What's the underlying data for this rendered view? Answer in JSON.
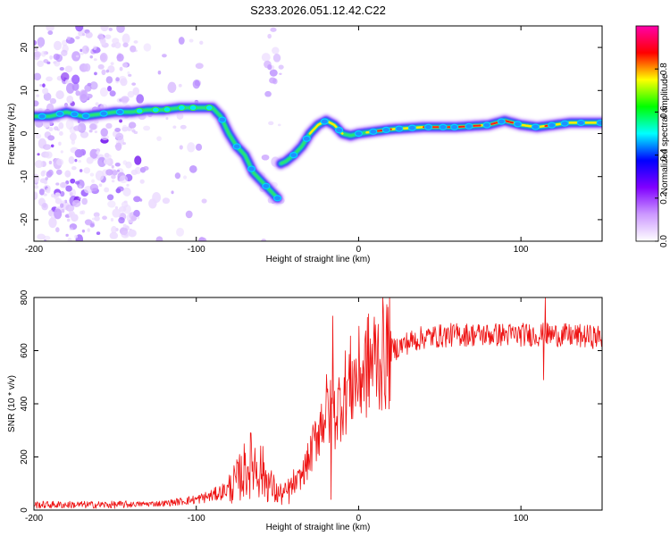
{
  "title": "S233.2026.051.12.42.C22",
  "chart_data": [
    {
      "type": "heatmap",
      "name": "spectrogram",
      "xlabel": "Height of straight line (km)",
      "ylabel": "Frequency (Hz)",
      "xlim": [
        -200,
        150
      ],
      "ylim": [
        -25,
        25
      ],
      "xticks": [
        -200,
        -100,
        0,
        100
      ],
      "yticks": [
        20,
        10,
        0,
        -10,
        -20
      ],
      "colorbar": {
        "label": "Normalized spectral amplitude",
        "range": [
          0,
          1
        ],
        "ticks": [
          0.0,
          0.2,
          0.4,
          0.6,
          0.8
        ],
        "colors": [
          "#ffffff",
          "#cc99ff",
          "#8000ff",
          "#0000ff",
          "#00ffff",
          "#00ff00",
          "#ffff00",
          "#ff0000",
          "#ff00aa"
        ]
      },
      "ridge": [
        [
          -200,
          4
        ],
        [
          -190,
          4
        ],
        [
          -180,
          5
        ],
        [
          -170,
          4
        ],
        [
          -160,
          4.5
        ],
        [
          -150,
          5
        ],
        [
          -140,
          5
        ],
        [
          -130,
          5.5
        ],
        [
          -120,
          5.5
        ],
        [
          -110,
          6
        ],
        [
          -100,
          6
        ],
        [
          -90,
          6
        ],
        [
          -85,
          4
        ],
        [
          -80,
          0
        ],
        [
          -75,
          -3
        ],
        [
          -70,
          -5
        ],
        [
          -65,
          -9
        ],
        [
          -60,
          -11
        ],
        [
          -55,
          -13
        ],
        [
          -50,
          -15
        ],
        [
          -48,
          -7
        ],
        [
          -45,
          -6.5
        ],
        [
          -40,
          -5
        ],
        [
          -35,
          -3
        ],
        [
          -30,
          0
        ],
        [
          -25,
          2
        ],
        [
          -20,
          3
        ],
        [
          -15,
          2
        ],
        [
          -10,
          0
        ],
        [
          -5,
          -0.5
        ],
        [
          0,
          0
        ],
        [
          10,
          0.5
        ],
        [
          20,
          1
        ],
        [
          40,
          1.5
        ],
        [
          60,
          1.5
        ],
        [
          80,
          2
        ],
        [
          90,
          3
        ],
        [
          100,
          2
        ],
        [
          110,
          1.5
        ],
        [
          120,
          2
        ],
        [
          130,
          2.5
        ],
        [
          140,
          2.5
        ],
        [
          150,
          2.5
        ]
      ]
    },
    {
      "type": "line",
      "name": "snr",
      "xlabel": "Height of straight line (km)",
      "ylabel": "SNR (10 * v/v)",
      "xlim": [
        -200,
        150
      ],
      "ylim": [
        0,
        800
      ],
      "xticks": [
        -200,
        -100,
        0,
        100
      ],
      "yticks": [
        0,
        200,
        400,
        600,
        800
      ],
      "color": "#ee1111",
      "envelope": [
        [
          -200,
          20
        ],
        [
          -150,
          20
        ],
        [
          -120,
          25
        ],
        [
          -100,
          40
        ],
        [
          -90,
          55
        ],
        [
          -80,
          80
        ],
        [
          -75,
          110
        ],
        [
          -70,
          150
        ],
        [
          -65,
          180
        ],
        [
          -60,
          150
        ],
        [
          -55,
          100
        ],
        [
          -50,
          60
        ],
        [
          -45,
          60
        ],
        [
          -40,
          90
        ],
        [
          -35,
          130
        ],
        [
          -30,
          200
        ],
        [
          -25,
          300
        ],
        [
          -20,
          380
        ],
        [
          -15,
          350
        ],
        [
          -10,
          430
        ],
        [
          -5,
          480
        ],
        [
          0,
          500
        ],
        [
          5,
          540
        ],
        [
          10,
          570
        ],
        [
          20,
          600
        ],
        [
          30,
          630
        ],
        [
          40,
          650
        ],
        [
          60,
          660
        ],
        [
          80,
          660
        ],
        [
          100,
          660
        ],
        [
          120,
          660
        ],
        [
          150,
          650
        ]
      ],
      "spikes": [
        {
          "x": -16,
          "y": 730
        },
        {
          "x": -17,
          "y": 40
        },
        {
          "x": 115,
          "y": 800
        },
        {
          "x": 114,
          "y": 490
        }
      ]
    }
  ]
}
